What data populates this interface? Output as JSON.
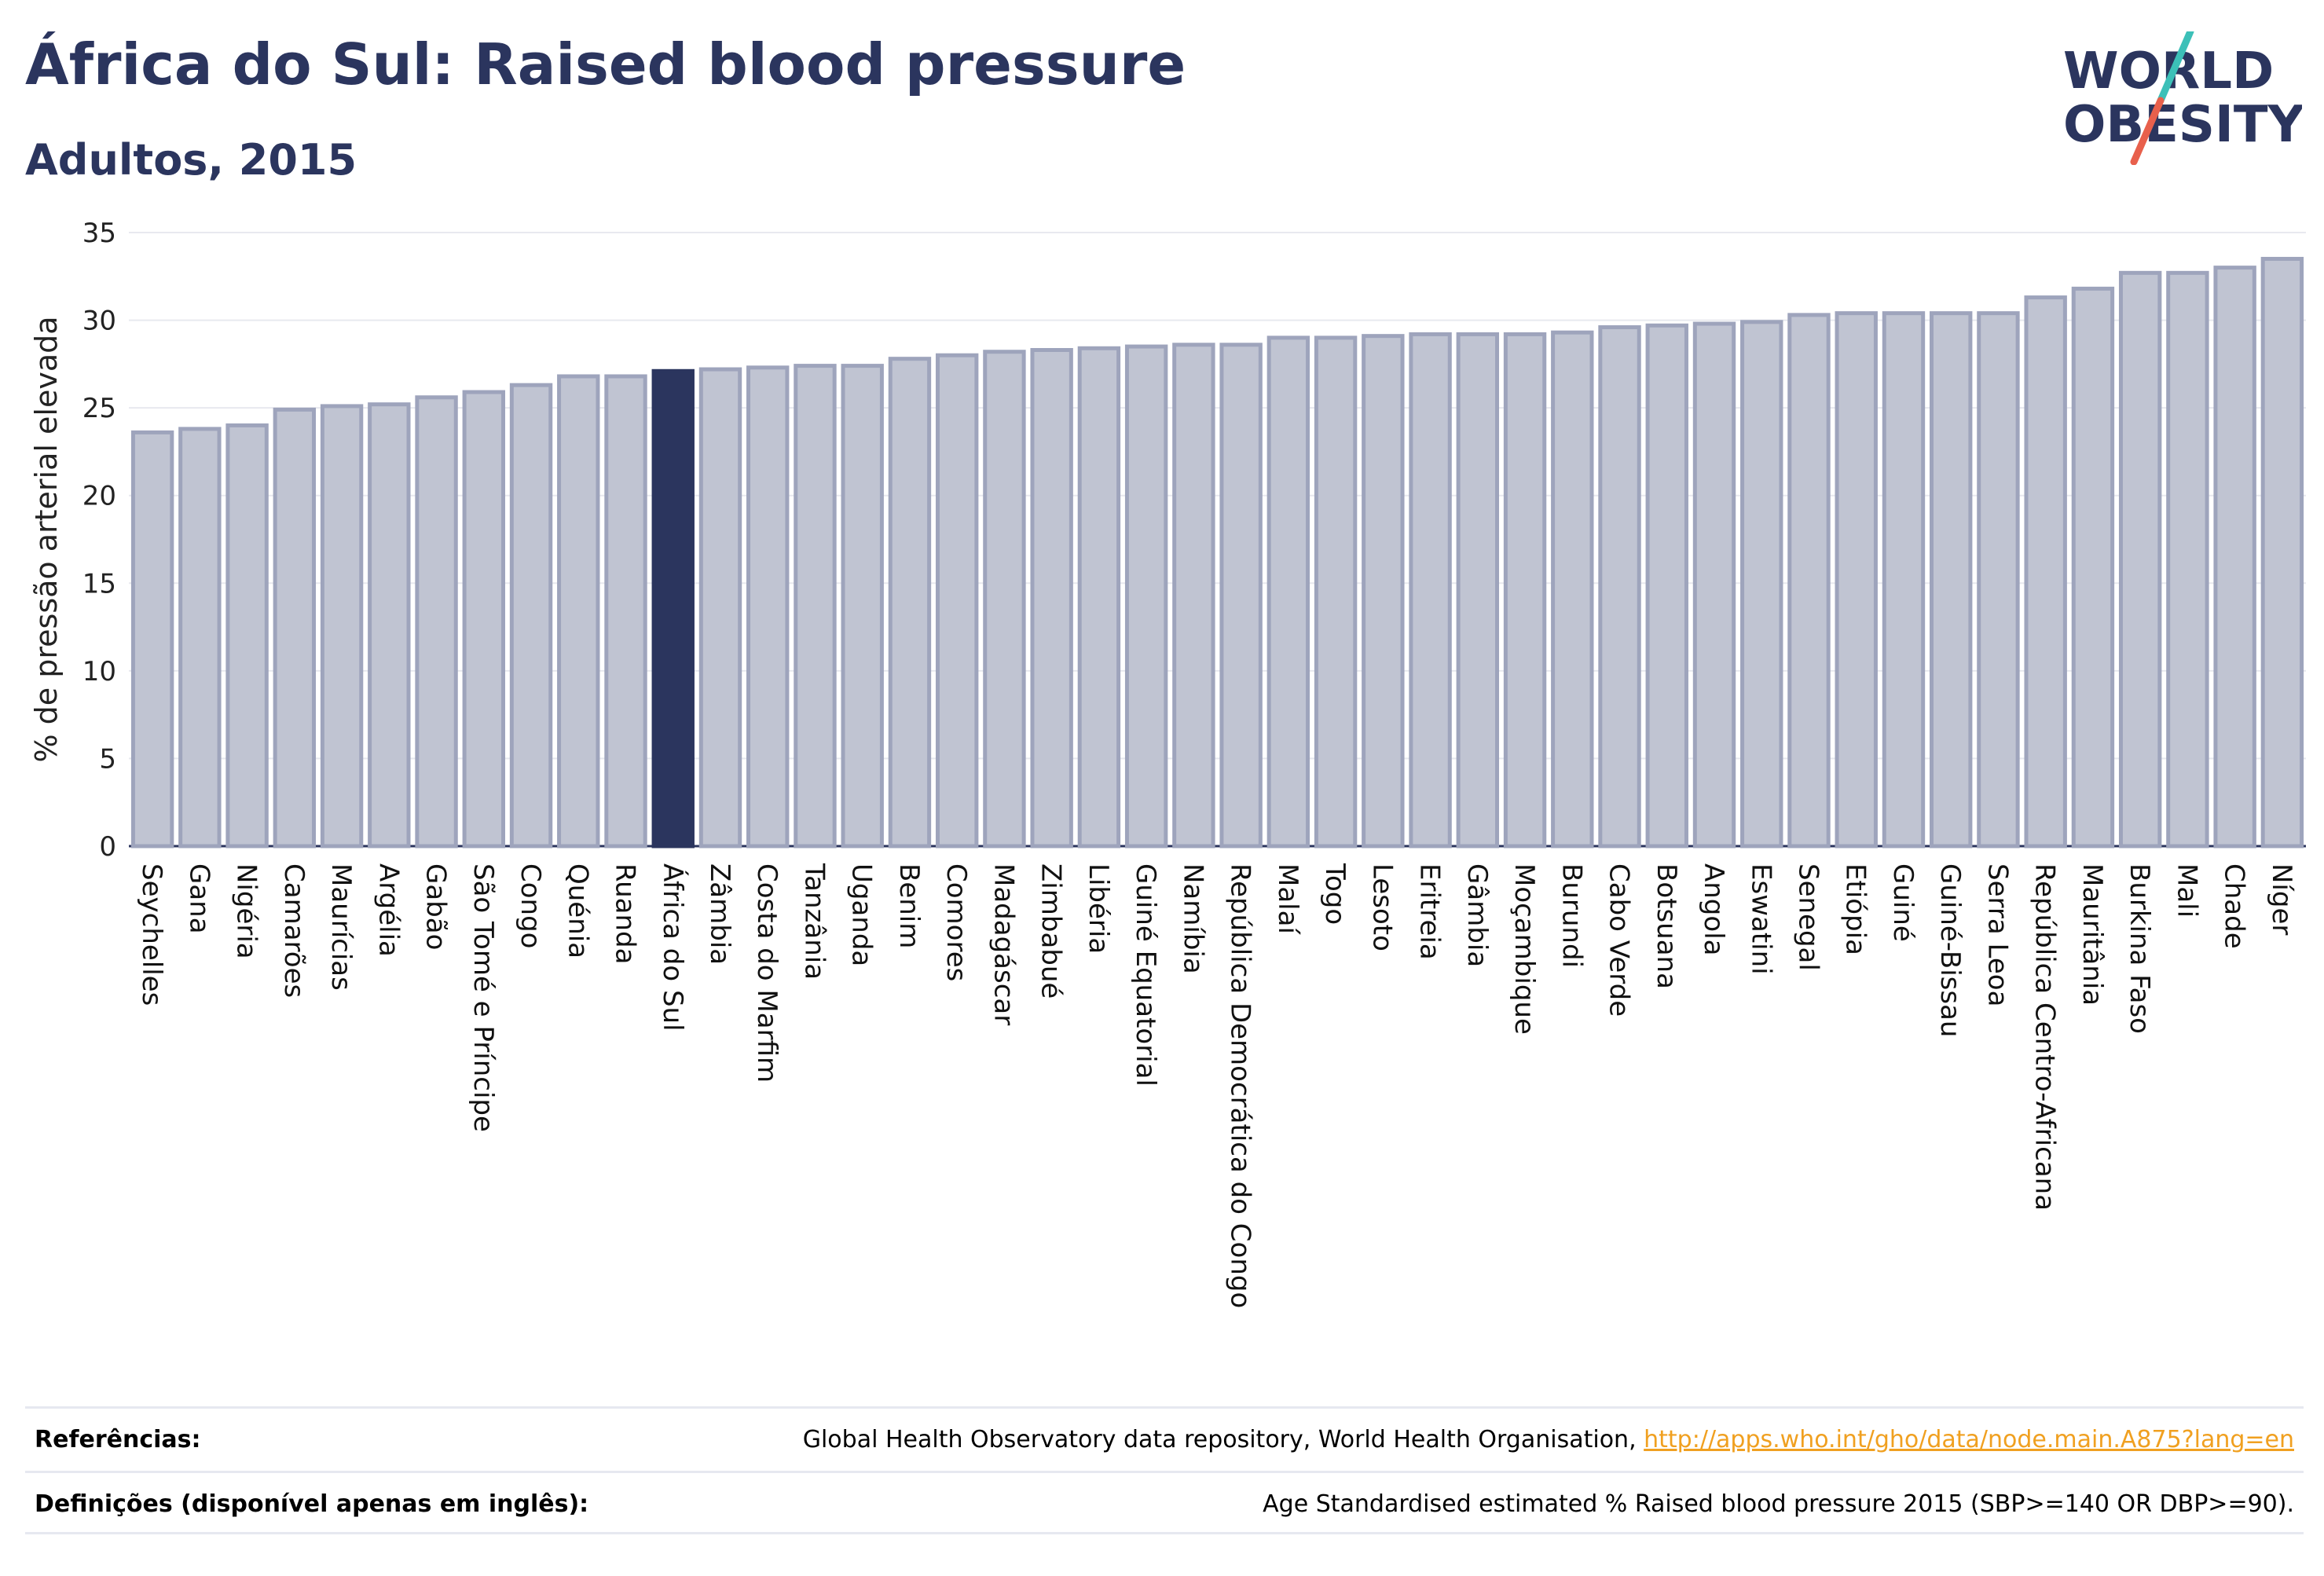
{
  "header": {
    "title": "África do Sul: Raised blood pressure",
    "subtitle": "Adultos, 2015"
  },
  "logo": {
    "line1": "WORLD",
    "line2": "OBESITY",
    "slash_colors": [
      "#3cc0b8",
      "#e8604c"
    ]
  },
  "colors": {
    "bar_fill": "#c0c4d2",
    "bar_stroke": "#9ea4bc",
    "highlight": "#2b355e",
    "text": "#2b355e",
    "link": "#f0a020"
  },
  "chart_data": {
    "type": "bar",
    "ylabel": "% de pressão arterial elevada",
    "ylim": [
      0,
      35
    ],
    "yticks": [
      0,
      5,
      10,
      15,
      20,
      25,
      30,
      35
    ],
    "highlight": "África do Sul",
    "categories": [
      "Seychelles",
      "Gana",
      "Nigéria",
      "Camarões",
      "Maurícias",
      "Argélia",
      "Gabão",
      "São Tomé e Príncipe",
      "Congo",
      "Quénia",
      "Ruanda",
      "África do Sul",
      "Zâmbia",
      "Costa do Marfim",
      "Tanzânia",
      "Uganda",
      "Benim",
      "Comores",
      "Madagáscar",
      "Zimbabué",
      "Libéria",
      "Guiné Equatorial",
      "Namíbia",
      "República Democrática do Congo",
      "Malaí",
      "Togo",
      "Lesoto",
      "Eritreia",
      "Gâmbia",
      "Moçambique",
      "Burundi",
      "Cabo Verde",
      "Botsuana",
      "Angola",
      "Eswatini",
      "Senegal",
      "Etiópia",
      "Guiné",
      "Guiné-Bissau",
      "Serra Leoa",
      "República Centro-Africana",
      "Mauritânia",
      "Burkina Faso",
      "Mali",
      "Chade",
      "Níger"
    ],
    "values": [
      23.6,
      23.8,
      24.0,
      24.9,
      25.1,
      25.2,
      25.6,
      25.9,
      26.3,
      26.8,
      26.8,
      27.1,
      27.2,
      27.3,
      27.4,
      27.4,
      27.8,
      28.0,
      28.2,
      28.3,
      28.4,
      28.5,
      28.6,
      28.6,
      29.0,
      29.0,
      29.1,
      29.2,
      29.2,
      29.2,
      29.3,
      29.6,
      29.7,
      29.8,
      29.9,
      30.3,
      30.4,
      30.4,
      30.4,
      30.4,
      31.3,
      31.8,
      32.7,
      32.7,
      33.0,
      33.5
    ]
  },
  "footer": {
    "references_label": "Referências:",
    "references_text": "Global Health Observatory data repository, World Health Organisation, ",
    "references_link": "http://apps.who.int/gho/data/node.main.A875?lang=en",
    "definitions_label": "Definições (disponível apenas em inglês):",
    "definitions_text": "Age Standardised estimated % Raised blood pressure 2015 (SBP>=140 OR DBP>=90)."
  }
}
